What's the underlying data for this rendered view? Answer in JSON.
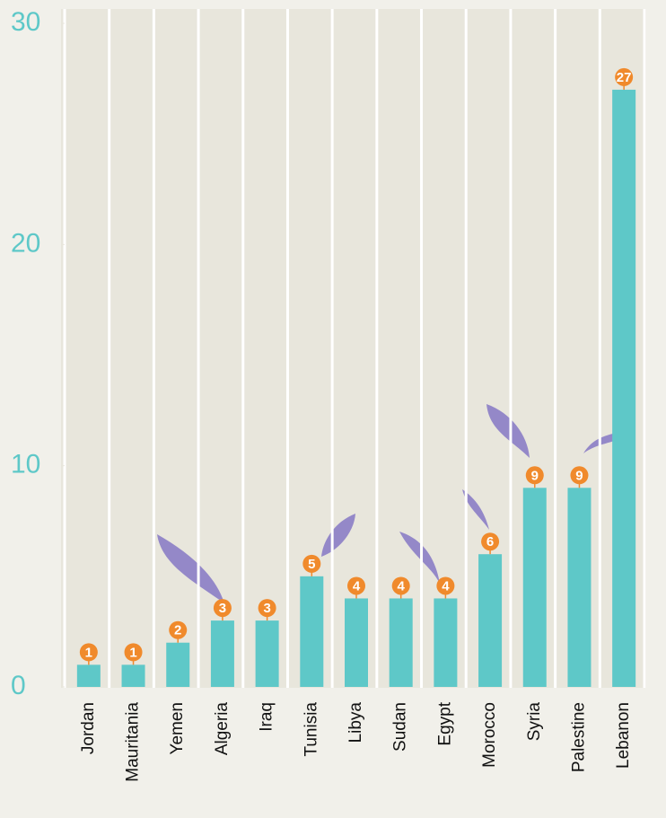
{
  "chart_data": {
    "type": "bar",
    "categories": [
      "Jordan",
      "Mauritania",
      "Yemen",
      "Algeria",
      "Iraq",
      "Tunisia",
      "Libya",
      "Sudan",
      "Egypt",
      "Morocco",
      "Syria",
      "Palestine",
      "Lebanon"
    ],
    "values": [
      1,
      1,
      2,
      3,
      3,
      5,
      4,
      4,
      4,
      6,
      9,
      9,
      27
    ],
    "color": "#5ec8c8",
    "label_color": "#f08a2c",
    "axis_color": "#5ec8c8",
    "ylim": [
      0,
      30
    ],
    "yticks": [
      0,
      10,
      20,
      30
    ],
    "grid": true
  }
}
